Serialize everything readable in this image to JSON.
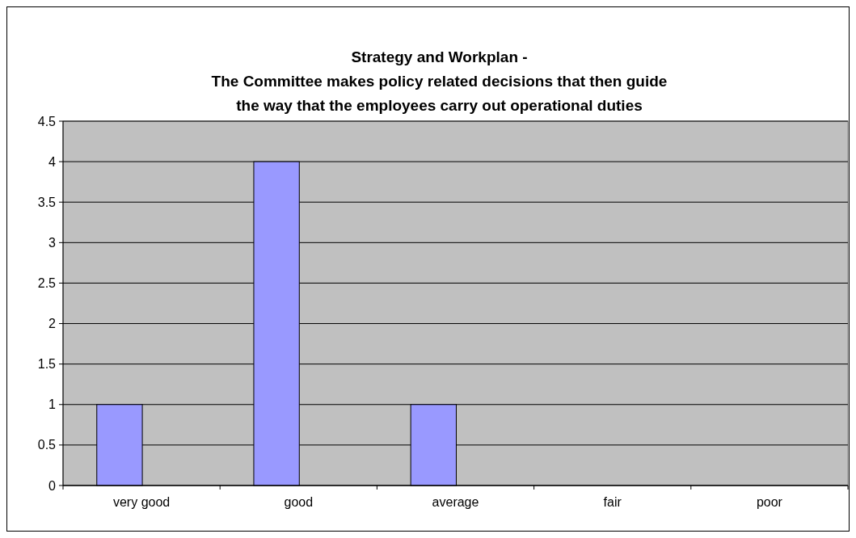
{
  "chart_data": {
    "type": "bar",
    "title": "Strategy and Workplan -\nThe Committee makes policy related decisions that then guide\nthe way that the employees carry out operational duties",
    "categories": [
      "very good",
      "good",
      "average",
      "fair",
      "poor"
    ],
    "values": [
      1,
      4,
      1,
      0,
      0
    ],
    "color": "#9999ff",
    "ylim": [
      0,
      4.5
    ],
    "yticks": [
      0,
      0.5,
      1,
      1.5,
      2,
      2.5,
      3,
      3.5,
      4,
      4.5
    ],
    "grid": "y"
  }
}
